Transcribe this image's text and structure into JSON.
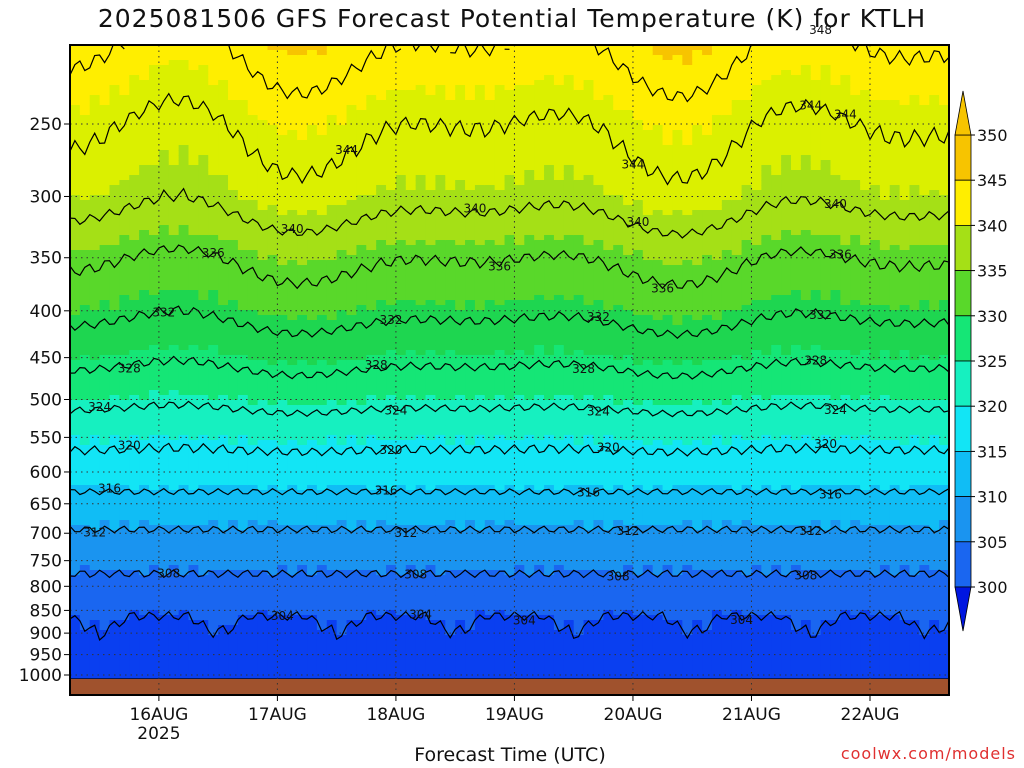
{
  "title": "2025081506 GFS Forecast Potential Temperature (K) for KTLH",
  "xlabel": "Forecast Time (UTC)",
  "credit": "coolwx.com/models",
  "chart_data": {
    "type": "heatmap",
    "title": "2025081506 GFS Forecast Potential Temperature (K) for KTLH",
    "xlabel": "Forecast Time (UTC)",
    "ylabel": "",
    "x_ticks": [
      {
        "label": "16AUG",
        "sublabel": "2025",
        "t": 24
      },
      {
        "label": "17AUG",
        "sublabel": "",
        "t": 48
      },
      {
        "label": "18AUG",
        "sublabel": "",
        "t": 72
      },
      {
        "label": "19AUG",
        "sublabel": "",
        "t": 96
      },
      {
        "label": "20AUG",
        "sublabel": "",
        "t": 120
      },
      {
        "label": "21AUG",
        "sublabel": "",
        "t": 144
      },
      {
        "label": "22AUG",
        "sublabel": "",
        "t": 168
      }
    ],
    "x_range_hours": [
      6,
      184
    ],
    "y_ticks": [
      250,
      300,
      350,
      400,
      450,
      500,
      550,
      600,
      650,
      700,
      750,
      800,
      850,
      900,
      950,
      1000
    ],
    "y_range_hpa": [
      200,
      1010
    ],
    "colorbar": {
      "levels": [
        300,
        305,
        310,
        315,
        320,
        325,
        330,
        335,
        340,
        345,
        350
      ],
      "colors": [
        "#0016e0",
        "#0a3ff0",
        "#1a66f0",
        "#1a94f0",
        "#10bdf5",
        "#12e5f5",
        "#16f0c0",
        "#15e676",
        "#1ed650",
        "#59d82a",
        "#a5e016",
        "#dbf000",
        "#ffee00",
        "#f7c400"
      ],
      "extend": "both"
    },
    "contour_interval_K": 4,
    "contour_labels": [
      {
        "value": 344,
        "t": [
          62,
          120,
          156,
          163
        ]
      },
      {
        "value": 348,
        "t": [
          158
        ]
      },
      {
        "value": 340,
        "t": [
          51,
          88,
          121,
          161
        ]
      },
      {
        "value": 336,
        "t": [
          35,
          93,
          126,
          162
        ]
      },
      {
        "value": 332,
        "t": [
          25,
          71,
          113,
          158
        ]
      },
      {
        "value": 328,
        "t": [
          18,
          68,
          110,
          157
        ]
      },
      {
        "value": 324,
        "t": [
          12,
          72,
          113,
          161
        ]
      },
      {
        "value": 320,
        "t": [
          18,
          71,
          115,
          159
        ]
      },
      {
        "value": 316,
        "t": [
          14,
          70,
          111,
          160
        ]
      },
      {
        "value": 312,
        "t": [
          11,
          74,
          119,
          156
        ]
      },
      {
        "value": 308,
        "t": [
          26,
          76,
          117,
          155
        ]
      },
      {
        "value": 304,
        "t": [
          49,
          77,
          98,
          142
        ]
      }
    ],
    "profile": {
      "hpa": [
        200,
        250,
        300,
        350,
        400,
        450,
        500,
        550,
        600,
        650,
        700,
        750,
        800,
        850,
        900,
        950,
        1000
      ],
      "theta_K": [
        349,
        344.5,
        341.5,
        336.5,
        333,
        329,
        325,
        321,
        318.2,
        314.6,
        311.6,
        309.2,
        306.8,
        304.8,
        303.2,
        302.2,
        301.4
      ]
    }
  }
}
